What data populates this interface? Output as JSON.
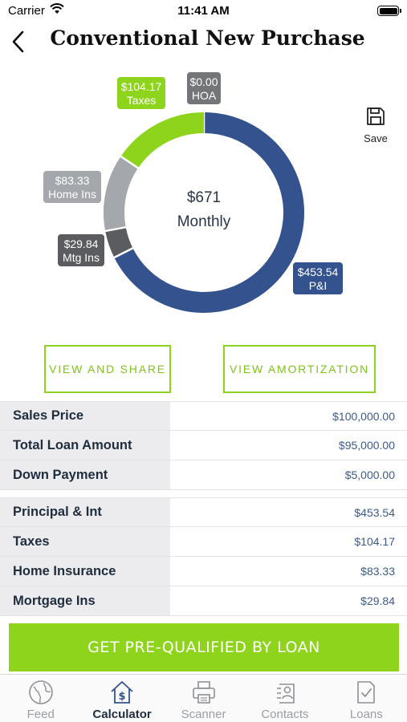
{
  "status_bar": {
    "carrier": "Carrier",
    "time": "11:41 AM"
  },
  "header": {
    "title": "Conventional New Purchase",
    "back_icon": "chevron-left-icon"
  },
  "save": {
    "label": "Save",
    "icon": "floppy-disk-icon"
  },
  "chart_data": {
    "type": "pie",
    "style": "donut",
    "center_amount": "$671",
    "center_label": "Monthly",
    "slices": [
      {
        "label": "P&I",
        "amount": "$453.54",
        "value": 453.54,
        "color": "#34538e"
      },
      {
        "label": "Mtg Ins",
        "amount": "$29.84",
        "value": 29.84,
        "color": "#5a5c5f"
      },
      {
        "label": "Home Ins",
        "amount": "$83.33",
        "value": 83.33,
        "color": "#a4a7ab"
      },
      {
        "label": "Taxes",
        "amount": "$104.17",
        "value": 104.17,
        "color": "#8fd41c"
      },
      {
        "label": "HOA",
        "amount": "$0.00",
        "value": 0.0,
        "color": "#737578"
      }
    ]
  },
  "actions": {
    "view_share": "VIEW AND SHARE",
    "view_amortization": "VIEW AMORTIZATION"
  },
  "loan_table": [
    {
      "label": "Sales Price",
      "value": "$100,000.00"
    },
    {
      "label": "Total Loan Amount",
      "value": "$95,000.00"
    },
    {
      "label": "Down Payment",
      "value": "$5,000.00"
    }
  ],
  "payment_table": [
    {
      "label": "Principal & Int",
      "value": "$453.54"
    },
    {
      "label": "Taxes",
      "value": "$104.17"
    },
    {
      "label": "Home Insurance",
      "value": "$83.33"
    },
    {
      "label": "Mortgage Ins",
      "value": "$29.84"
    }
  ],
  "cta": {
    "label": "GET PRE-QUALIFIED BY LOAN"
  },
  "tabs": [
    {
      "label": "Feed",
      "icon": "globe-icon",
      "active": false
    },
    {
      "label": "Calculator",
      "icon": "house-dollar-icon",
      "active": true
    },
    {
      "label": "Scanner",
      "icon": "printer-icon",
      "active": false
    },
    {
      "label": "Contacts",
      "icon": "contacts-icon",
      "active": false
    },
    {
      "label": "Loans",
      "icon": "document-check-icon",
      "active": false
    }
  ],
  "colors": {
    "accent_green": "#8fd41c",
    "navy": "#34538e",
    "text_dark": "#1f2d3d",
    "value_blue": "#3e5a8a"
  }
}
